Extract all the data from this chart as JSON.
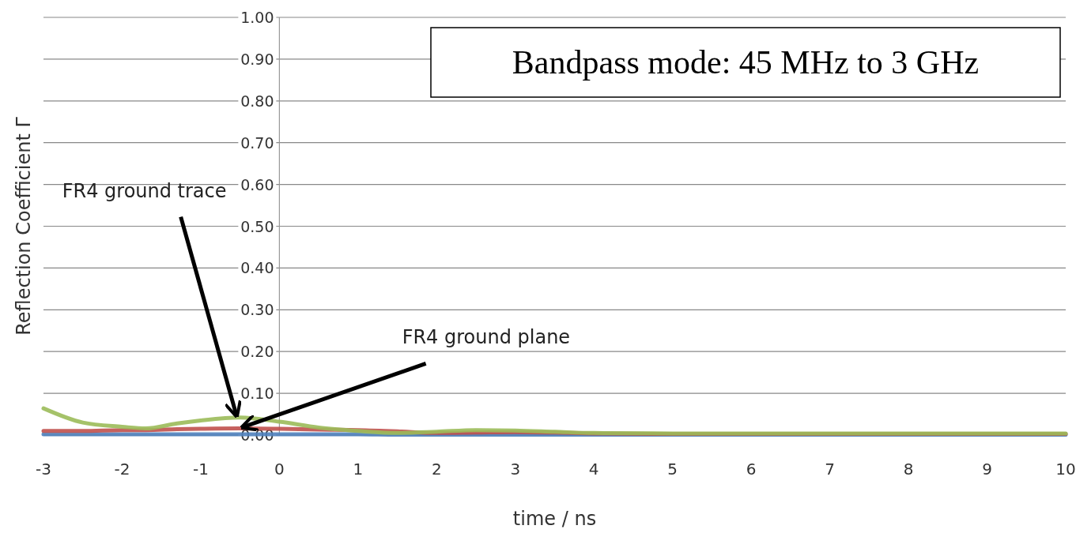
{
  "chart_data": {
    "type": "line",
    "title": "Bandpass mode: 45 MHz to 3 GHz",
    "xlabel": "time / ns",
    "ylabel": "Reflection Coefficient Γ",
    "x": [
      -3,
      -2.5,
      -2,
      -1.7,
      -1.3,
      -1,
      -0.5,
      0,
      0.5,
      1,
      1.5,
      2,
      2.5,
      3,
      3.5,
      4,
      5,
      6,
      7,
      8,
      9,
      10
    ],
    "series": [
      {
        "color": "#4f81bd",
        "values": [
          0.002,
          0.002,
          0.002,
          0.002,
          0.002,
          0.002,
          0.002,
          0.002,
          0.002,
          0.002,
          0.001,
          0.001,
          0.001,
          0.001,
          0.001,
          0.001,
          0.001,
          0.001,
          0.001,
          0.001,
          0.001,
          0.001
        ]
      },
      {
        "color": "#c0504d",
        "values": [
          0.01,
          0.01,
          0.012,
          0.012,
          0.014,
          0.015,
          0.016,
          0.015,
          0.013,
          0.012,
          0.009,
          0.005,
          0.006,
          0.007,
          0.006,
          0.004,
          0.003,
          0.003,
          0.003,
          0.003,
          0.003,
          0.003
        ]
      },
      {
        "color": "#9bbb59",
        "values": [
          0.064,
          0.03,
          0.02,
          0.016,
          0.028,
          0.035,
          0.042,
          0.032,
          0.018,
          0.01,
          0.005,
          0.008,
          0.012,
          0.011,
          0.008,
          0.005,
          0.004,
          0.004,
          0.004,
          0.004,
          0.004,
          0.004
        ]
      }
    ],
    "annotations": [
      {
        "text": "FR4 ground trace",
        "x": -0.55,
        "y": 0.05
      },
      {
        "text": "FR4 ground plane",
        "x": -0.45,
        "y": 0.02
      }
    ],
    "xlim": [
      -3,
      10
    ],
    "xticks": [
      -3,
      -2,
      -1,
      0,
      1,
      2,
      3,
      4,
      5,
      6,
      7,
      8,
      9,
      10
    ],
    "ylim": [
      0,
      1
    ],
    "yticks": [
      {
        "value": 0,
        "label": "0.00"
      },
      {
        "value": 0.1,
        "label": "0.10"
      },
      {
        "value": 0.2,
        "label": "0.20"
      },
      {
        "value": 0.3,
        "label": "0.30"
      },
      {
        "value": 0.4,
        "label": "0.40"
      },
      {
        "value": 0.5,
        "label": "0.50"
      },
      {
        "value": 0.6,
        "label": "0.60"
      },
      {
        "value": 0.7,
        "label": "0.70"
      },
      {
        "value": 0.8,
        "label": "0.80"
      },
      {
        "value": 0.9,
        "label": "0.90"
      },
      {
        "value": 1,
        "label": "1.00"
      }
    ],
    "grid": "y",
    "legend": false,
    "marker": "none",
    "line_style": "solid"
  }
}
